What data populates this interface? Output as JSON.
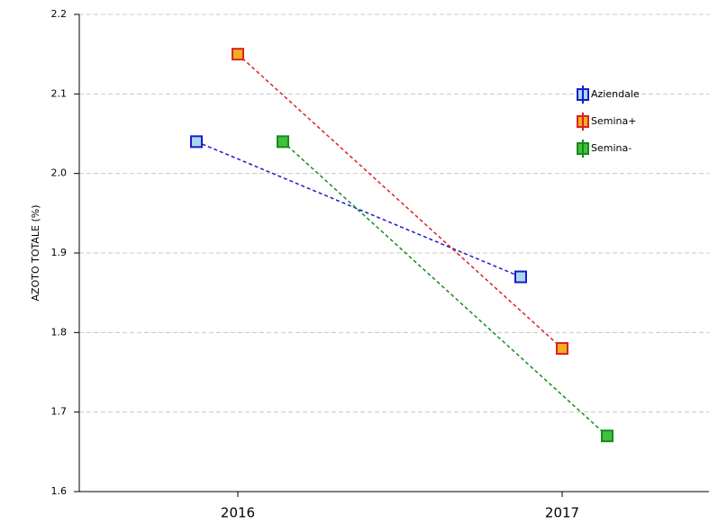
{
  "chart_data": {
    "type": "line",
    "y_label": "AZOTO TOTALE (%)",
    "categories": [
      "2016",
      "2017"
    ],
    "series": [
      {
        "name": "Aziendale",
        "color": "#1a1acc",
        "marker_fill": "#a8d8f0",
        "values": [
          2.04,
          1.87
        ]
      },
      {
        "name": "Semina+",
        "color": "#e02020",
        "marker_fill": "#f0b020",
        "values": [
          2.15,
          1.78
        ]
      },
      {
        "name": "Semina-",
        "color": "#1a8a1a",
        "marker_fill": "#40c040",
        "values": [
          2.04,
          1.67
        ]
      }
    ],
    "ylim": [
      1.6,
      2.2
    ],
    "yticks": [
      1.6,
      1.7,
      1.8,
      1.9,
      {
        "value": 2,
        "label": "2.0"
      },
      2.1,
      2.2
    ],
    "grid": true
  }
}
